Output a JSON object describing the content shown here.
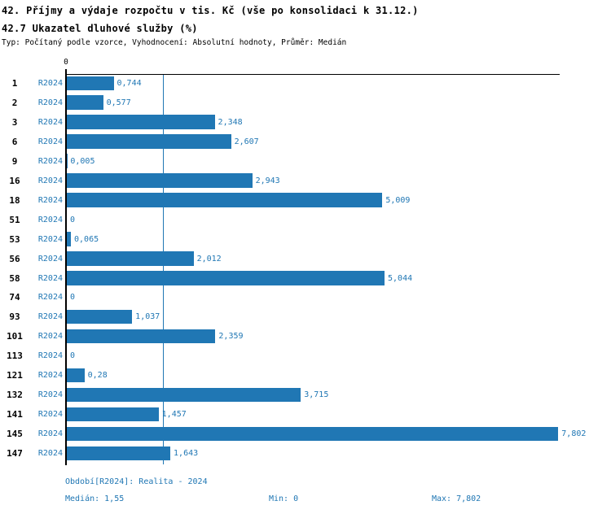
{
  "header": {
    "title_line1": "42. Příjmy a výdaje rozpočtu v tis. Kč (vše po konsolidaci k 31.12.)",
    "title_line2": "42.7 Ukazatel dluhové služby (%)",
    "subtitle": "Typ: Počítaný podle vzorce, Vyhodnocení: Absolutní hodnoty, Průměr: Medián"
  },
  "chart_data": {
    "type": "bar",
    "orientation": "horizontal",
    "title": "42.7 Ukazatel dluhové služby (%)",
    "origin_label": "0",
    "xlim": [
      0,
      7.85
    ],
    "grid": false,
    "bar_color": "#2077b4",
    "series_label": "R2024",
    "median_value": 1.55,
    "categories": [
      "1",
      "2",
      "3",
      "6",
      "9",
      "16",
      "18",
      "51",
      "53",
      "56",
      "58",
      "74",
      "93",
      "101",
      "113",
      "121",
      "132",
      "141",
      "145",
      "147"
    ],
    "values": [
      0.744,
      0.577,
      2.348,
      2.607,
      0.005,
      2.943,
      5.009,
      0,
      0.065,
      2.012,
      5.044,
      0,
      1.037,
      2.359,
      0,
      0.28,
      3.715,
      1.457,
      7.802,
      1.643
    ],
    "value_labels": [
      "0,744",
      "0,577",
      "2,348",
      "2,607",
      "0,005",
      "2,943",
      "5,009",
      "0",
      "0,065",
      "2,012",
      "5,044",
      "0",
      "1,037",
      "2,359",
      "0",
      "0,28",
      "3,715",
      "1,457",
      "7,802",
      "1,643"
    ]
  },
  "footer": {
    "period": "Období[R2024]: Realita - 2024",
    "median": "Medián: 1,55",
    "min": "Min: 0",
    "max": "Max: 7,802"
  },
  "colors": {
    "accent": "#2077b4",
    "axis": "#000000",
    "background": "#ffffff"
  }
}
